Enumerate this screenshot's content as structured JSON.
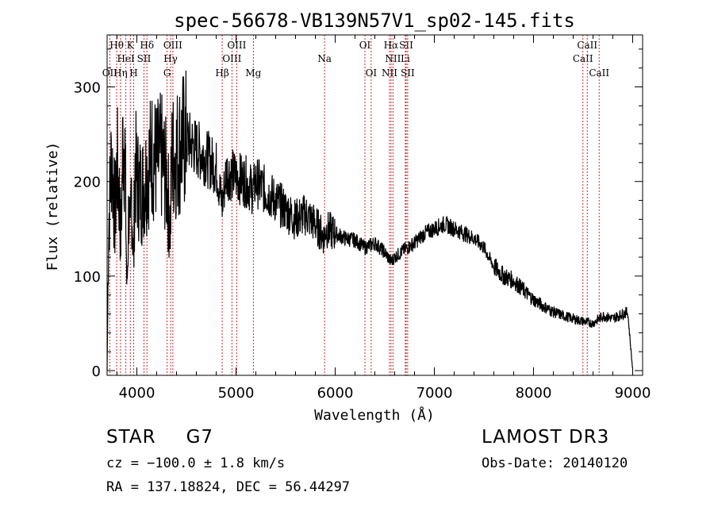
{
  "chart_data": {
    "type": "line",
    "title": "spec-56678-VB139N57V1_sp02-145.fits",
    "xlabel": "Wavelength (Å)",
    "ylabel": "Flux (relative)",
    "xlim": [
      3700,
      9100
    ],
    "ylim": [
      -5,
      355
    ],
    "xticks": [
      {
        "value": 4000,
        "label": "4000"
      },
      {
        "value": 5000,
        "label": "5000"
      },
      {
        "value": 6000,
        "label": "6000"
      },
      {
        "value": 7000,
        "label": "7000"
      },
      {
        "value": 8000,
        "label": "8000"
      },
      {
        "value": 9000,
        "label": "9000"
      }
    ],
    "yticks": [
      {
        "value": 0,
        "label": "0"
      },
      {
        "value": 100,
        "label": "100"
      },
      {
        "value": 200,
        "label": "200"
      },
      {
        "value": 300,
        "label": "300"
      }
    ],
    "series": [
      {
        "name": "flux",
        "x": [
          3700,
          3715,
          3730,
          3745,
          3760,
          3780,
          3800,
          3820,
          3840,
          3860,
          3880,
          3900,
          3920,
          3933,
          3945,
          3968,
          3980,
          4000,
          4050,
          4102,
          4150,
          4200,
          4250,
          4300,
          4340,
          4350,
          4400,
          4450,
          4500,
          4600,
          4700,
          4800,
          4861,
          4900,
          5000,
          5100,
          5172,
          5200,
          5300,
          5400,
          5500,
          5600,
          5700,
          5800,
          5893,
          5900,
          6000,
          6100,
          6200,
          6300,
          6400,
          6500,
          6563,
          6600,
          6700,
          6800,
          6900,
          7000,
          7100,
          7200,
          7300,
          7400,
          7500,
          7600,
          7700,
          7800,
          7900,
          8000,
          8100,
          8200,
          8300,
          8400,
          8500,
          8600,
          8700,
          8800,
          8900,
          8950,
          9000
        ],
        "y": [
          0,
          150,
          190,
          230,
          200,
          160,
          220,
          190,
          140,
          250,
          230,
          80,
          180,
          120,
          200,
          110,
          220,
          200,
          190,
          210,
          230,
          220,
          225,
          200,
          150,
          225,
          230,
          240,
          245,
          235,
          225,
          215,
          175,
          210,
          205,
          200,
          190,
          200,
          190,
          180,
          170,
          160,
          165,
          155,
          140,
          150,
          145,
          140,
          138,
          130,
          135,
          125,
          115,
          120,
          128,
          135,
          145,
          150,
          155,
          150,
          145,
          140,
          130,
          110,
          100,
          95,
          85,
          75,
          68,
          62,
          58,
          55,
          52,
          50,
          58,
          55,
          60,
          62,
          0
        ]
      }
    ],
    "lines": [
      {
        "label": "OII",
        "wave": 3727,
        "row": 3
      },
      {
        "label": "Hθ",
        "wave": 3797,
        "row": 1
      },
      {
        "label": "Hη",
        "wave": 3835,
        "row": 3
      },
      {
        "label": "HeI",
        "wave": 3889,
        "row": 2
      },
      {
        "label": "K",
        "wave": 3934,
        "row": 1
      },
      {
        "label": "H",
        "wave": 3968,
        "row": 3
      },
      {
        "label": "SII",
        "wave": 4072,
        "row": 2
      },
      {
        "label": "Hδ",
        "wave": 4102,
        "row": 1
      },
      {
        "label": "G",
        "wave": 4305,
        "row": 3
      },
      {
        "label": "Hγ",
        "wave": 4340,
        "row": 2
      },
      {
        "label": "OIII",
        "wave": 4363,
        "row": 1
      },
      {
        "label": "Hβ",
        "wave": 4861,
        "row": 3
      },
      {
        "label": "OIII",
        "wave": 4959,
        "row": 2
      },
      {
        "label": "OIII",
        "wave": 5007,
        "row": 1
      },
      {
        "label": "Mg",
        "wave": 5175,
        "row": 3
      },
      {
        "label": "Na",
        "wave": 5893,
        "row": 2
      },
      {
        "label": "OI",
        "wave": 6300,
        "row": 1
      },
      {
        "label": "OI",
        "wave": 6363,
        "row": 3
      },
      {
        "label": "NII",
        "wave": 6548,
        "row": 3
      },
      {
        "label": "Hα",
        "wave": 6563,
        "row": 1
      },
      {
        "label": "NII",
        "wave": 6583,
        "row": 2
      },
      {
        "label": "Li",
        "wave": 6707,
        "row": 2
      },
      {
        "label": "SII",
        "wave": 6716,
        "row": 1
      },
      {
        "label": "SII",
        "wave": 6731,
        "row": 3
      },
      {
        "label": "CaII",
        "wave": 8498,
        "row": 2
      },
      {
        "label": "CaII",
        "wave": 8542,
        "row": 1
      },
      {
        "label": "CaII",
        "wave": 8662,
        "row": 3
      }
    ]
  },
  "info": {
    "object_class": "STAR",
    "subclass": "G7",
    "survey": "LAMOST DR3",
    "cz": "cz = −100.0 ± 1.8 km/s",
    "obs_date": "Obs-Date: 20140120",
    "radec": "RA = 137.18824, DEC =  56.44297"
  },
  "colors": {
    "line_marker": "#cc2a2a",
    "spectrum": "#000000",
    "axes": "#000000"
  }
}
